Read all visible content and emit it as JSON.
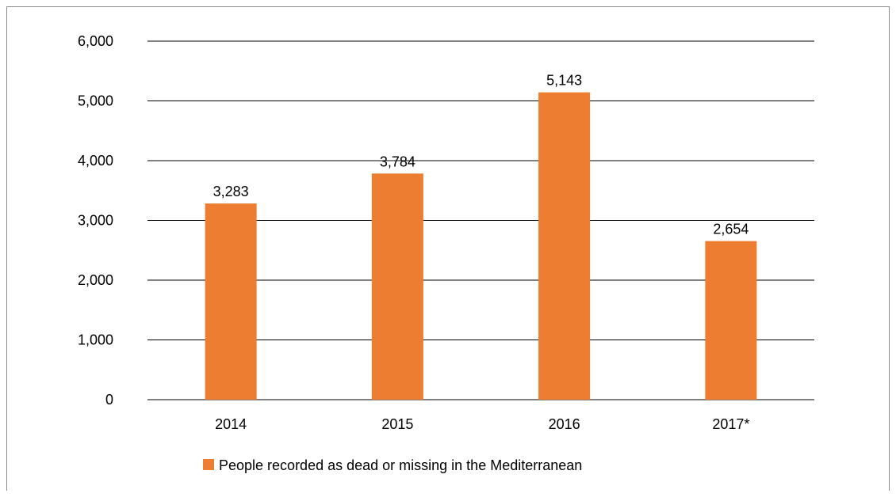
{
  "chart_data": {
    "type": "bar",
    "categories": [
      "2014",
      "2015",
      "2016",
      "2017*"
    ],
    "series": [
      {
        "name": "People recorded as dead or missing in the Mediterranean",
        "values": [
          3283,
          3784,
          5143,
          2654
        ],
        "labels": [
          "3,283",
          "3,784",
          "5,143",
          "2,654"
        ],
        "color": "#ED7D31"
      }
    ],
    "title": "",
    "xlabel": "",
    "ylabel": "",
    "ylim": [
      0,
      6000
    ],
    "yticks": [
      0,
      1000,
      2000,
      3000,
      4000,
      5000,
      6000
    ],
    "ytick_labels": [
      "0",
      "1,000",
      "2,000",
      "3,000",
      "4,000",
      "5,000",
      "6,000"
    ],
    "grid": true,
    "legend_position": "bottom",
    "gridline_color": "#000000"
  }
}
